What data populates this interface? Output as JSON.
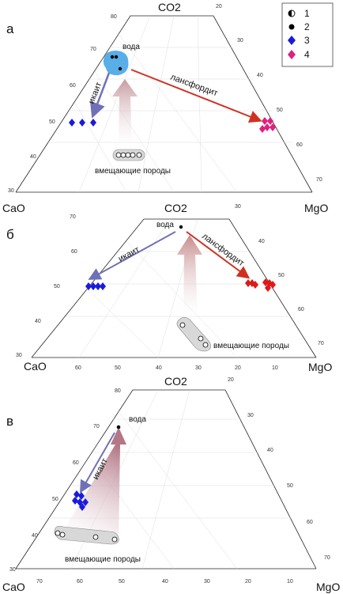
{
  "legend": [
    {
      "key": "1",
      "symbol": "half-filled-circle",
      "color": "#000000"
    },
    {
      "key": "2",
      "symbol": "filled-circle",
      "color": "#000000"
    },
    {
      "key": "3",
      "symbol": "diamond",
      "color": "#1a1adc"
    },
    {
      "key": "4",
      "symbol": "diamond",
      "color": "#e0207f"
    }
  ],
  "panels": [
    {
      "label": "а",
      "corners": {
        "top": "CO2",
        "left": "CaO",
        "right": "MgO"
      },
      "left_ticks": [
        "80",
        "70",
        "60",
        "50",
        "40",
        "30"
      ],
      "right_ticks": [
        "20",
        "30",
        "40",
        "50",
        "60",
        "70"
      ],
      "bottom_ticks": [],
      "labels": {
        "water": "вода",
        "ikaite": "икаит",
        "lansfordite": "лансфордит",
        "host_rocks": "вмещающие породы"
      },
      "colors": {
        "water_blob": "#5aaee8",
        "ikaite_arrow": "#7070b8",
        "lansfordite_arrow": "#d03020",
        "ikaite_points": "#1a1adc",
        "lansfordite_points": "#e0207f"
      }
    },
    {
      "label": "б",
      "corners": {
        "top": "CO2",
        "left": "CaO",
        "right": "MgO"
      },
      "left_ticks": [
        "70",
        "60",
        "50",
        "40",
        "30"
      ],
      "right_ticks": [
        "30",
        "40",
        "50",
        "60",
        "70"
      ],
      "bottom_ticks": [
        "60",
        "50",
        "40",
        "30",
        "20",
        "10"
      ],
      "labels": {
        "water": "вода",
        "ikaite": "икаит",
        "lansfordite": "лансфордит",
        "host_rocks": "вмещающие породы"
      },
      "colors": {
        "ikaite_arrow": "#7070b8",
        "lansfordite_arrow": "#d03020",
        "ikaite_points": "#1a1adc",
        "lansfordite_points": "#e01818"
      }
    },
    {
      "label": "в",
      "corners": {
        "top": "CO2",
        "left": "CaO",
        "right": "MgO"
      },
      "left_ticks": [
        "80",
        "70",
        "60",
        "50",
        "40",
        "30"
      ],
      "right_ticks": [
        "20",
        "30",
        "40",
        "50",
        "60",
        "70"
      ],
      "bottom_ticks": [
        "70",
        "60",
        "50",
        "40",
        "30",
        "20",
        "10"
      ],
      "labels": {
        "water": "вода",
        "ikaite": "икаит",
        "host_rocks": "вмещающие породы"
      },
      "colors": {
        "ikaite_arrow": "#7070b8",
        "ikaite_points": "#1a1adc"
      }
    }
  ]
}
